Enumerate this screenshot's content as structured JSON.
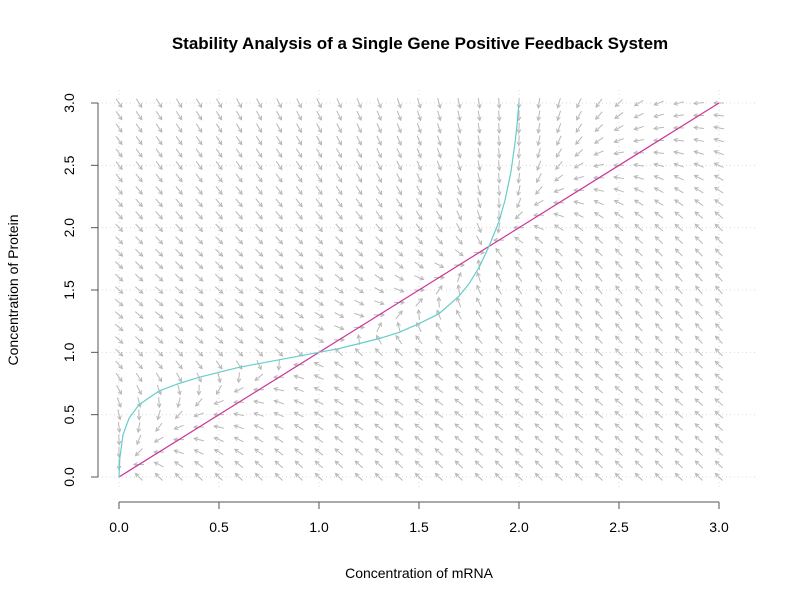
{
  "chart_data": {
    "type": "vector-field",
    "title": "Stability Analysis of a Single Gene Positive Feedback System",
    "xlabel": "Concentration of mRNA",
    "ylabel": "Concentration of Protein",
    "xlim": [
      0,
      3
    ],
    "ylim": [
      0,
      3
    ],
    "xticks": [
      "0.0",
      "0.5",
      "1.0",
      "1.5",
      "2.0",
      "2.5",
      "3.0"
    ],
    "yticks": [
      "0.0",
      "0.5",
      "1.0",
      "1.5",
      "2.0",
      "2.5",
      "3.0"
    ],
    "grid": true,
    "colors": {
      "arrows": "#b8b8b8",
      "mrna_nullcline": "#cc3399",
      "protein_nullcline": "#66cccc",
      "grid": "#d9d9d9"
    },
    "vector_field": {
      "x_range": [
        0,
        3
      ],
      "y_range": [
        0,
        3
      ],
      "step": 0.1
    },
    "series": [
      {
        "type": "line",
        "x": [
          0,
          3
        ],
        "y": [
          0,
          3
        ]
      },
      {
        "type": "line",
        "x": [
          0.0,
          0.004,
          0.02,
          0.05,
          0.1,
          0.2,
          0.3,
          0.4,
          0.5,
          0.6,
          0.7,
          0.8,
          0.9,
          1.0,
          1.1,
          1.2,
          1.3,
          1.4,
          1.5,
          1.6,
          1.7,
          1.75,
          1.8,
          1.85,
          1.9,
          1.93,
          1.96,
          1.98,
          1.99,
          1.995,
          2.0
        ],
        "y": [
          0.0,
          0.15,
          0.34,
          0.47,
          0.58,
          0.69,
          0.75,
          0.8,
          0.84,
          0.88,
          0.91,
          0.94,
          0.97,
          1.0,
          1.03,
          1.07,
          1.11,
          1.16,
          1.23,
          1.31,
          1.45,
          1.55,
          1.68,
          1.85,
          2.05,
          2.22,
          2.45,
          2.68,
          2.82,
          2.92,
          3.0
        ]
      }
    ]
  }
}
